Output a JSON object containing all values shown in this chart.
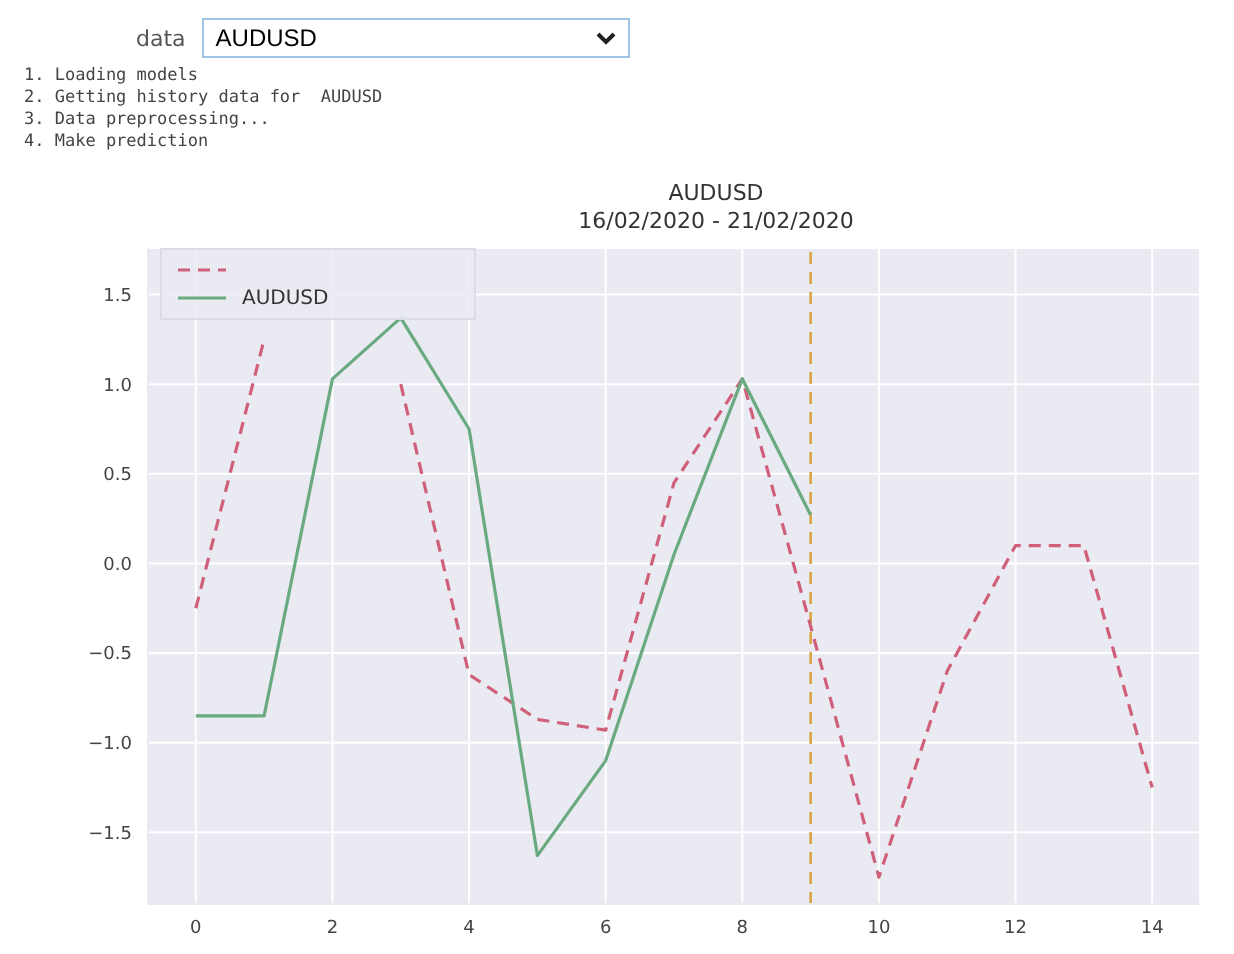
{
  "chart_data": {
    "type": "line",
    "title": "AUDUSD",
    "subtitle": "16/02/2020 - 21/02/2020",
    "annotations": [
      "data",
      "AUDUSD",
      "1. Loading models",
      "2. Getting history data for  AUDUSD",
      "3. Data preprocessing...",
      "4. Make prediction"
    ],
    "x": [
      0,
      1,
      2,
      3,
      4,
      5,
      6,
      7,
      8,
      9,
      10,
      11,
      12,
      13,
      14
    ],
    "series": [
      {
        "color": "#d0607a",
        "line_style": "dashed",
        "values": [
          -0.25,
          1.25,
          null,
          1.0,
          -0.62,
          -0.87,
          -0.93,
          0.45,
          1.03,
          -0.35,
          -1.75,
          -0.6,
          0.1,
          0.1,
          -1.25
        ]
      },
      {
        "name": "AUDUSD",
        "color": "#6aaa80",
        "line_style": "solid",
        "x": [
          0,
          1,
          2,
          3,
          4,
          5,
          6,
          7,
          8,
          9
        ],
        "values": [
          -0.85,
          -0.85,
          1.03,
          1.37,
          0.75,
          -1.63,
          -1.1,
          0.05,
          1.03,
          0.27
        ]
      }
    ],
    "ref_lines": [
      {
        "axis": "x",
        "value": 9,
        "color": "#d9a441",
        "line_style": "dashed"
      }
    ],
    "xlim": [
      -0.7,
      14.7
    ],
    "xticks": [
      0,
      2,
      4,
      6,
      8,
      10,
      12,
      14
    ],
    "ylim": [
      -1.9,
      1.76
    ],
    "yticks": [
      -1.5,
      {
        "value": -1,
        "label": "−1.0"
      },
      -0.5,
      {
        "value": 0,
        "label": "0.0"
      },
      0.5,
      {
        "value": 1,
        "label": "1.0"
      },
      1.5
    ],
    "grid": true,
    "legend": "top left",
    "marker": "none"
  }
}
